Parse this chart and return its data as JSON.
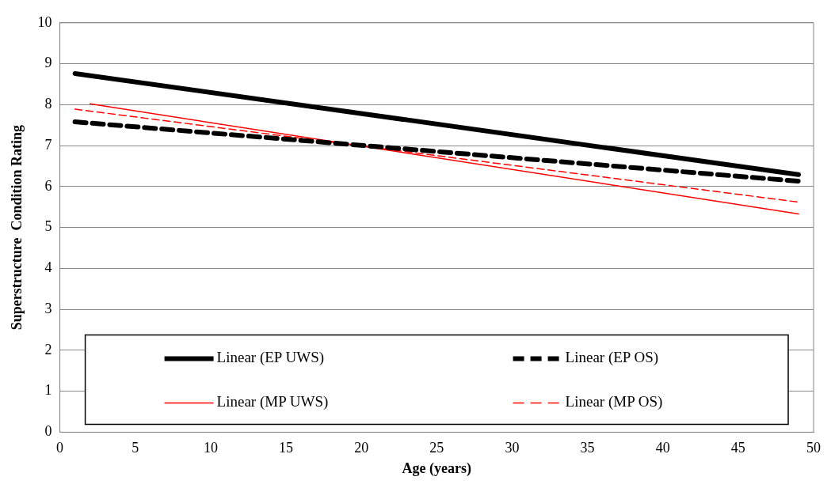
{
  "chart_data": {
    "type": "line",
    "xlabel": "Age (years)",
    "ylabel": "Superstructure  Condition Rating",
    "xlim": [
      0,
      50
    ],
    "xticks": [
      0,
      5,
      10,
      15,
      20,
      25,
      30,
      35,
      40,
      45,
      50
    ],
    "ylim": [
      0,
      10
    ],
    "yticks": [
      0,
      1,
      2,
      3,
      4,
      5,
      6,
      7,
      8,
      9,
      10
    ],
    "grid": "y",
    "legend": "bottom",
    "marker": "none",
    "series": [
      {
        "name": "Linear (EP UWS)",
        "color": "#000000",
        "line_style": "solid",
        "x": [
          1,
          49
        ],
        "values": [
          8.76,
          6.29
        ]
      },
      {
        "name": "Linear (EP OS)",
        "color": "#000000",
        "line_style": "dashed",
        "x": [
          1,
          49
        ],
        "values": [
          7.58,
          6.13
        ]
      },
      {
        "name": "Linear (MP UWS)",
        "color": "#ff0000",
        "line_style": "solid",
        "x": [
          2,
          49
        ],
        "values": [
          8.02,
          5.33
        ]
      },
      {
        "name": "Linear (MP OS)",
        "color": "#ff0000",
        "line_style": "dashed",
        "x": [
          1,
          49
        ],
        "values": [
          7.89,
          5.62
        ]
      }
    ]
  }
}
